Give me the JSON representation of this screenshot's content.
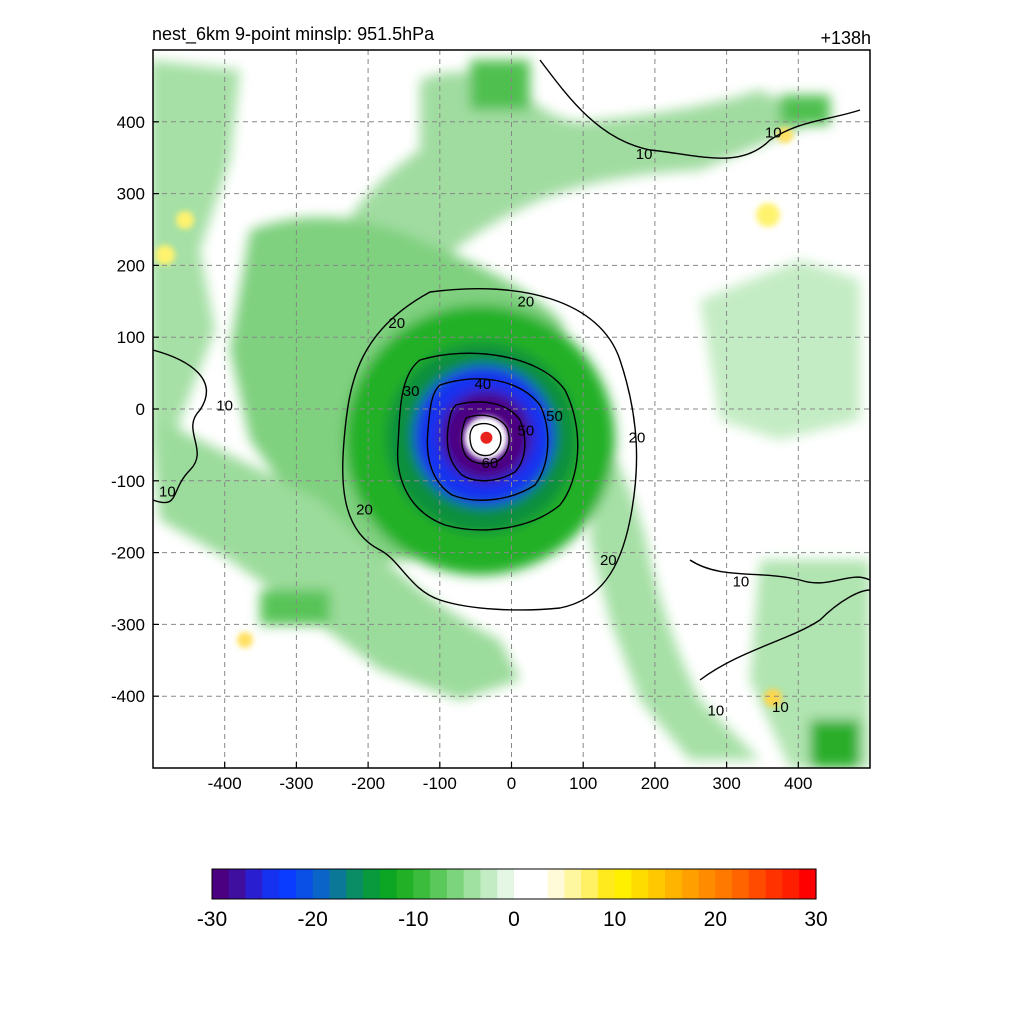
{
  "chart_data": {
    "type": "heatmap",
    "title": "nest_6km  9-point minslp: 951.5hPa",
    "subtitle": "+138h",
    "xlabel": "",
    "ylabel": "",
    "xlim": [
      -500,
      500
    ],
    "ylim": [
      -500,
      500
    ],
    "xticks": [
      -400,
      -300,
      -200,
      -100,
      0,
      100,
      200,
      300,
      400
    ],
    "yticks": [
      -400,
      -300,
      -200,
      -100,
      0,
      100,
      200,
      300,
      400
    ],
    "grid": true,
    "center_marker": {
      "x": -35,
      "y": -40,
      "color": "#e8231e"
    },
    "contour_levels": [
      10,
      20,
      30,
      40,
      50,
      60
    ],
    "contour_labels": [
      {
        "text": "10",
        "x": 185,
        "y": 355
      },
      {
        "text": "10",
        "x": 365,
        "y": 385
      },
      {
        "text": "20",
        "x": 20,
        "y": 150
      },
      {
        "text": "20",
        "x": -160,
        "y": 120
      },
      {
        "text": "30",
        "x": -140,
        "y": 25
      },
      {
        "text": "40",
        "x": -40,
        "y": 35
      },
      {
        "text": "50",
        "x": 60,
        "y": -10
      },
      {
        "text": "50",
        "x": 20,
        "y": -30
      },
      {
        "text": "60",
        "x": -30,
        "y": -75
      },
      {
        "text": "10",
        "x": -400,
        "y": 5
      },
      {
        "text": "10",
        "x": -480,
        "y": -115
      },
      {
        "text": "20",
        "x": -205,
        "y": -140
      },
      {
        "text": "20",
        "x": 175,
        "y": -40
      },
      {
        "text": "20",
        "x": 135,
        "y": -210
      },
      {
        "text": "10",
        "x": 320,
        "y": -240
      },
      {
        "text": "10",
        "x": 375,
        "y": -415
      },
      {
        "text": "10",
        "x": 285,
        "y": -420
      }
    ],
    "colorbar": {
      "min": -30,
      "max": 30,
      "ticks": [
        -30,
        -20,
        -10,
        0,
        10,
        20,
        30
      ],
      "colors": [
        "#4b0082",
        "#3f0fa0",
        "#2a1fd0",
        "#1432f0",
        "#0a3cff",
        "#0a50e6",
        "#0b64c8",
        "#0a7896",
        "#0a8c64",
        "#089a3c",
        "#0ca624",
        "#22b026",
        "#3cbc3c",
        "#5ac85a",
        "#7cd47c",
        "#a0e0a0",
        "#c4ecc4",
        "#e4f6e4",
        "#ffffff",
        "#ffffff",
        "#fffbd8",
        "#fff6a0",
        "#fff064",
        "#ffea1e",
        "#fff000",
        "#ffdc00",
        "#ffc800",
        "#ffb400",
        "#ffa000",
        "#ff8c00",
        "#ff7800",
        "#ff6400",
        "#ff4b00",
        "#ff3200",
        "#ff1e00",
        "#ff0000"
      ]
    }
  }
}
